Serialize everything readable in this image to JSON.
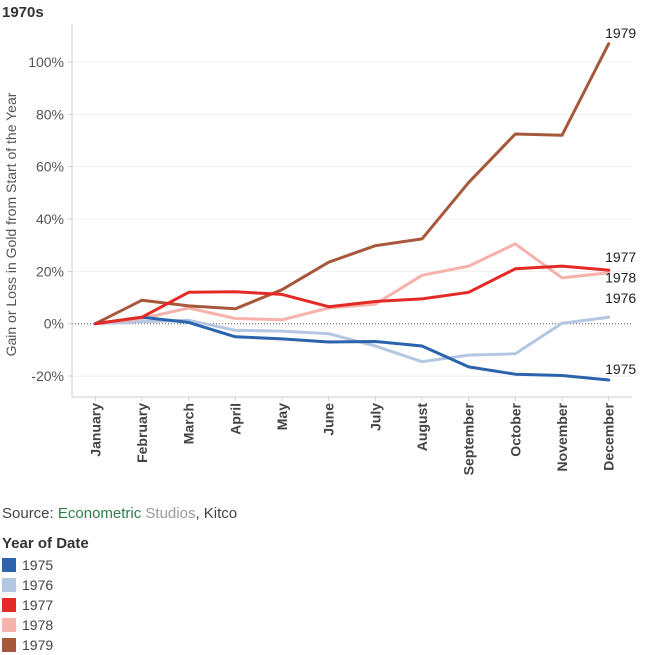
{
  "title": "1970s",
  "source": {
    "prefix": "Source: ",
    "part1": "Econometric",
    "part2": " Studios",
    "part3": ", Kitco"
  },
  "legend": {
    "title": "Year of Date",
    "items": [
      {
        "label": "1975",
        "color": "#2b63ad"
      },
      {
        "label": "1976",
        "color": "#b3c7e3"
      },
      {
        "label": "1977",
        "color": "#e52a26"
      },
      {
        "label": "1978",
        "color": "#f6b2ab"
      },
      {
        "label": "1979",
        "color": "#a8583a"
      }
    ]
  },
  "chart_data": {
    "type": "line",
    "title": "1970s",
    "xlabel": "",
    "ylabel": "Gain or Loss in Gold from Start of the Year",
    "categories": [
      "January",
      "February",
      "March",
      "April",
      "May",
      "June",
      "July",
      "August",
      "September",
      "October",
      "November",
      "December"
    ],
    "ylim": [
      -28,
      113
    ],
    "yticks": [
      -20,
      0,
      20,
      40,
      60,
      80,
      100
    ],
    "ytick_labels": [
      "-20%",
      "0%",
      "20%",
      "40%",
      "60%",
      "80%",
      "100%"
    ],
    "zero_reference_line": true,
    "series": [
      {
        "name": "1975",
        "color": "#2b63ad",
        "values": [
          0,
          2.5,
          0.5,
          -5,
          -5.8,
          -7,
          -6.8,
          -8.5,
          -16.5,
          -19.3,
          -19.8,
          -21.5
        ]
      },
      {
        "name": "1976",
        "color": "#b3c7e3",
        "values": [
          0,
          0.8,
          1.3,
          -2.5,
          -2.8,
          -3.8,
          -8.5,
          -14.5,
          -12,
          -11.5,
          0.2,
          2.5
        ]
      },
      {
        "name": "1977",
        "color": "#e52a26",
        "values": [
          0,
          2.5,
          12,
          12.2,
          11.2,
          6.5,
          8.5,
          9.5,
          12,
          21,
          22,
          20.5
        ]
      },
      {
        "name": "1978",
        "color": "#f6b2ab",
        "values": [
          0,
          2,
          6,
          2,
          1.5,
          6,
          7.5,
          18.5,
          22,
          30.5,
          17.5,
          19.5
        ]
      },
      {
        "name": "1979",
        "color": "#a8583a",
        "values": [
          0,
          9,
          6.8,
          5.7,
          13,
          23.5,
          29.8,
          32.4,
          54,
          72.5,
          72,
          107
        ]
      }
    ]
  }
}
